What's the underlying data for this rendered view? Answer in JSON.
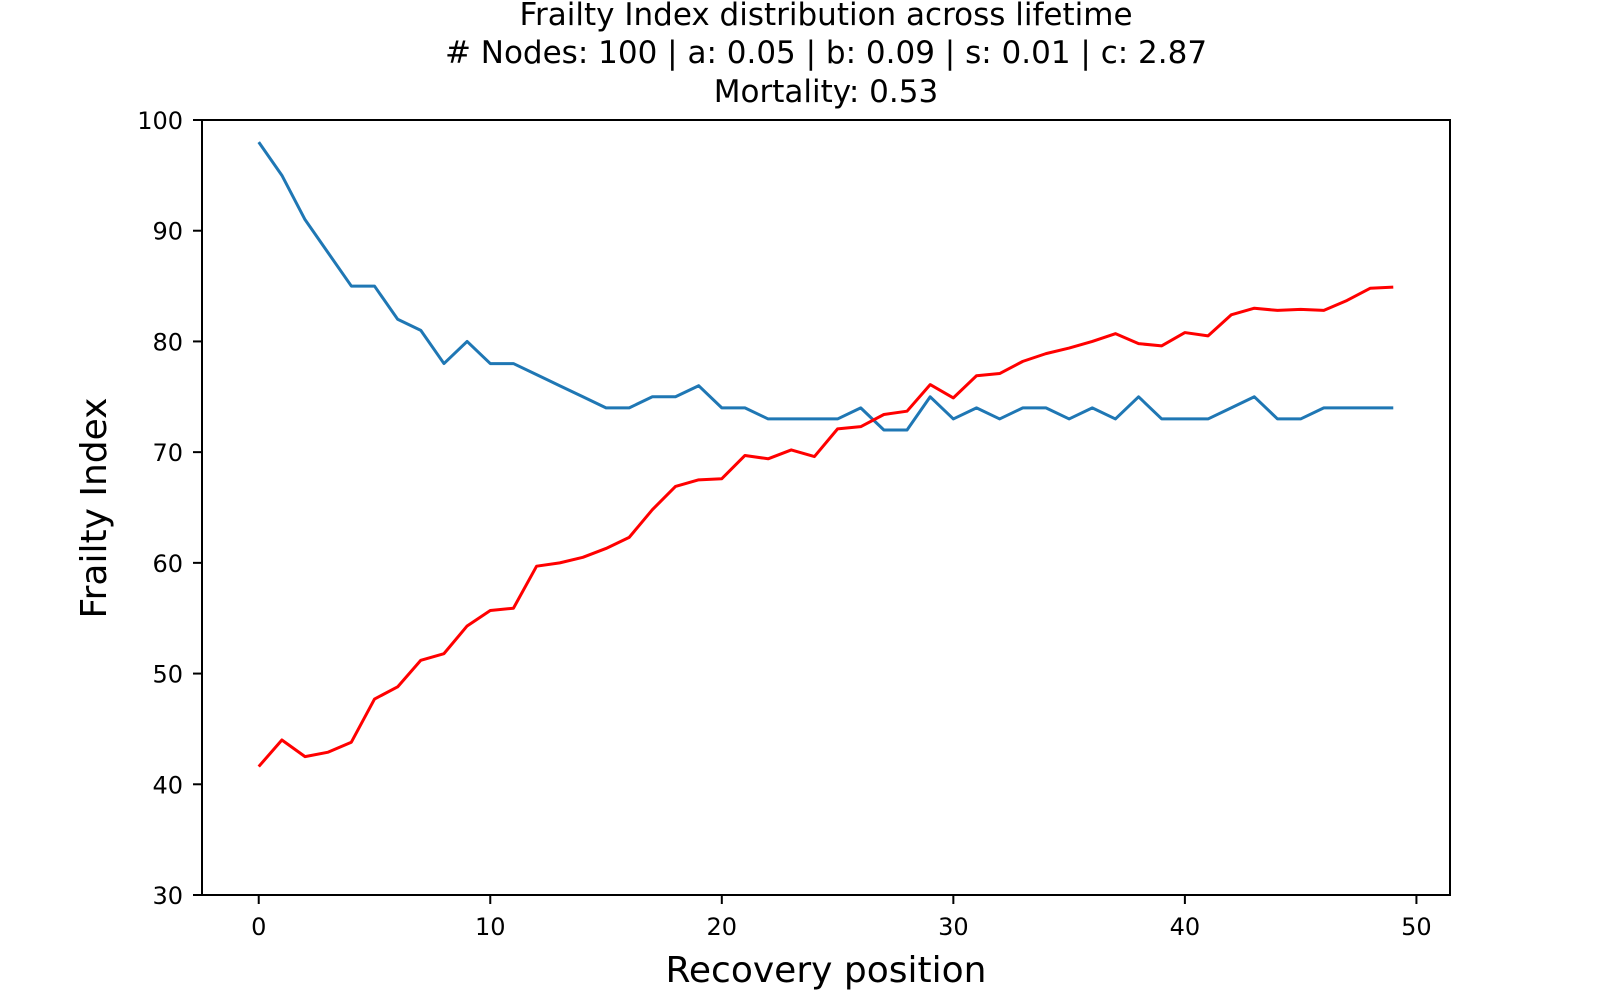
{
  "chart_data": {
    "type": "line",
    "title": "Frailty Index distribution across lifetime",
    "subtitle": "# Nodes: 100 | a: 0.05 | b: 0.09 | s: 0.01 | c: 2.87",
    "subtitle2": "Mortality: 0.53",
    "xlabel": "Recovery position",
    "ylabel": "Frailty Index",
    "xlim": [
      -2.45,
      51.45
    ],
    "ylim": [
      30,
      100
    ],
    "xticks": [
      0,
      10,
      20,
      30,
      40,
      50
    ],
    "yticks": [
      30,
      40,
      50,
      60,
      70,
      80,
      90,
      100
    ],
    "grid": false,
    "x": [
      0,
      1,
      2,
      3,
      4,
      5,
      6,
      7,
      8,
      9,
      10,
      11,
      12,
      13,
      14,
      15,
      16,
      17,
      18,
      19,
      20,
      21,
      22,
      23,
      24,
      25,
      26,
      27,
      28,
      29,
      30,
      31,
      32,
      33,
      34,
      35,
      36,
      37,
      38,
      39,
      40,
      41,
      42,
      43,
      44,
      45,
      46,
      47,
      48,
      49
    ],
    "series": [
      {
        "color": "#1f77b4",
        "values": [
          98,
          95,
          91,
          88,
          85,
          85,
          82,
          81,
          78,
          80,
          78,
          78,
          77,
          76,
          75,
          74,
          74,
          75,
          75,
          76,
          74,
          74,
          73,
          73,
          73,
          73,
          74,
          72,
          72,
          75,
          73,
          74,
          73,
          74,
          74,
          73,
          74,
          73,
          75,
          73,
          73,
          73,
          74,
          75,
          73,
          73,
          74,
          74,
          74,
          74
        ]
      },
      {
        "color": "#ff0000",
        "values": [
          41.6,
          44.0,
          42.5,
          42.9,
          43.8,
          47.7,
          48.8,
          51.2,
          51.8,
          54.3,
          55.7,
          55.9,
          59.7,
          60.0,
          60.5,
          61.3,
          62.3,
          64.8,
          66.9,
          67.5,
          67.6,
          69.7,
          69.4,
          70.2,
          69.6,
          72.1,
          72.3,
          73.4,
          73.7,
          76.1,
          74.9,
          76.9,
          77.1,
          78.2,
          78.9,
          79.4,
          80.0,
          80.7,
          79.8,
          79.6,
          80.8,
          80.5,
          82.4,
          83.0,
          82.8,
          82.9,
          82.8,
          83.7,
          84.8,
          84.9
        ]
      }
    ]
  }
}
